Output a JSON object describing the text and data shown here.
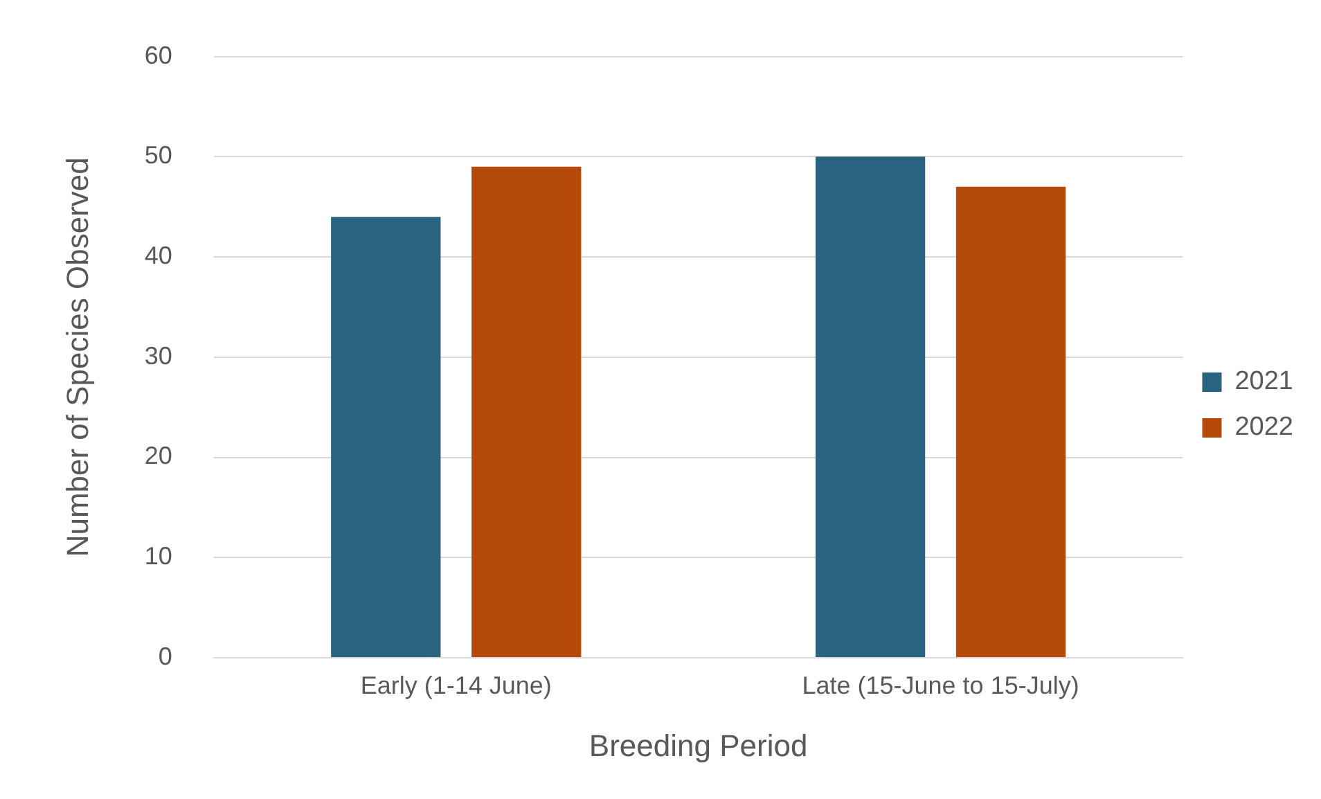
{
  "chart_data": {
    "type": "bar",
    "xlabel": "Breeding Period",
    "ylabel": "Number of Species Observed",
    "categories": [
      "Early (1-14 June)",
      "Late (15-June to 15-July)"
    ],
    "series": [
      {
        "name": "2021",
        "color": "#2a6380",
        "values": [
          44,
          50
        ]
      },
      {
        "name": "2022",
        "color": "#b5490a",
        "values": [
          49,
          47
        ]
      }
    ],
    "ylim": [
      0,
      60
    ],
    "yticks": [
      0,
      10,
      20,
      30,
      40,
      50,
      60
    ],
    "grid": "y",
    "legend": "right"
  }
}
